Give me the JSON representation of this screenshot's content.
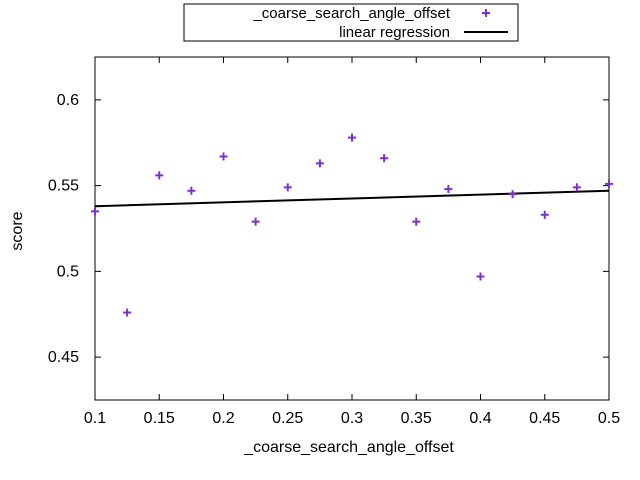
{
  "chart_data": {
    "type": "scatter",
    "xlabel": "_coarse_search_angle_offset",
    "ylabel": "score",
    "xlim": [
      0.1,
      0.5
    ],
    "ylim": [
      0.425,
      0.625
    ],
    "x_ticks": [
      "0.1",
      "0.15",
      "0.2",
      "0.25",
      "0.3",
      "0.35",
      "0.4",
      "0.45",
      "0.5"
    ],
    "y_ticks": [
      "0.45",
      "0.5",
      "0.55",
      "0.6"
    ],
    "grid": false,
    "legend_position": "top-center-outside",
    "series": [
      {
        "name": "_coarse_search_angle_offset",
        "type": "scatter",
        "marker": "plus",
        "color": "#7e2fd0",
        "x": [
          0.1,
          0.125,
          0.15,
          0.175,
          0.2,
          0.225,
          0.25,
          0.275,
          0.3,
          0.325,
          0.35,
          0.375,
          0.4,
          0.425,
          0.45,
          0.475,
          0.5
        ],
        "y": [
          0.535,
          0.476,
          0.556,
          0.547,
          0.567,
          0.529,
          0.549,
          0.563,
          0.578,
          0.566,
          0.529,
          0.548,
          0.497,
          0.545,
          0.533,
          0.549,
          0.551
        ]
      },
      {
        "name": "linear regression",
        "type": "line",
        "color": "#000000",
        "x": [
          0.1,
          0.5
        ],
        "y": [
          0.538,
          0.547
        ]
      }
    ]
  }
}
